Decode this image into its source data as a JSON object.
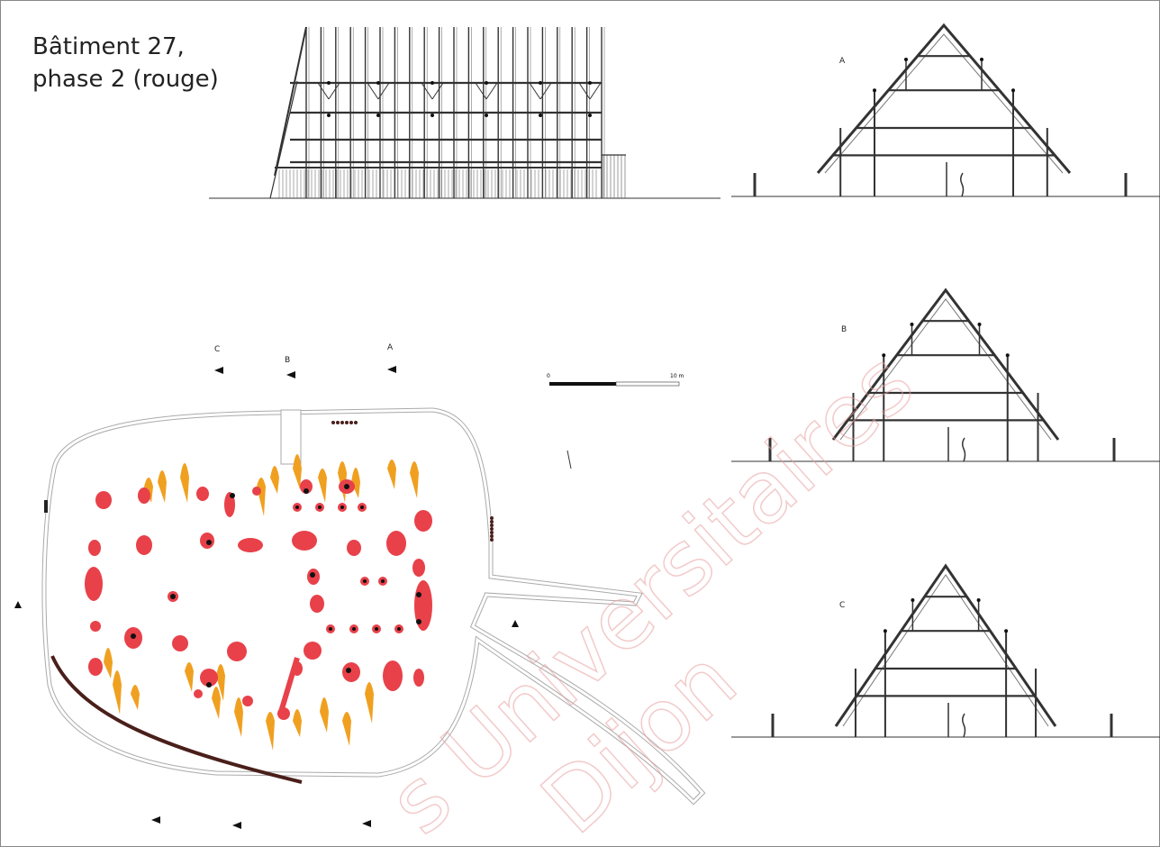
{
  "title": [
    "Bâtiment 27,",
    "phase 2 (rouge)"
  ],
  "sections": [
    {
      "label": "A"
    },
    {
      "label": "B"
    },
    {
      "label": "C"
    }
  ],
  "plan": {
    "section_markers": [
      "C",
      "B",
      "A"
    ],
    "scale": {
      "start": "0",
      "end": "10 m"
    }
  },
  "watermark": [
    "s Universitaires",
    "Dijon"
  ]
}
